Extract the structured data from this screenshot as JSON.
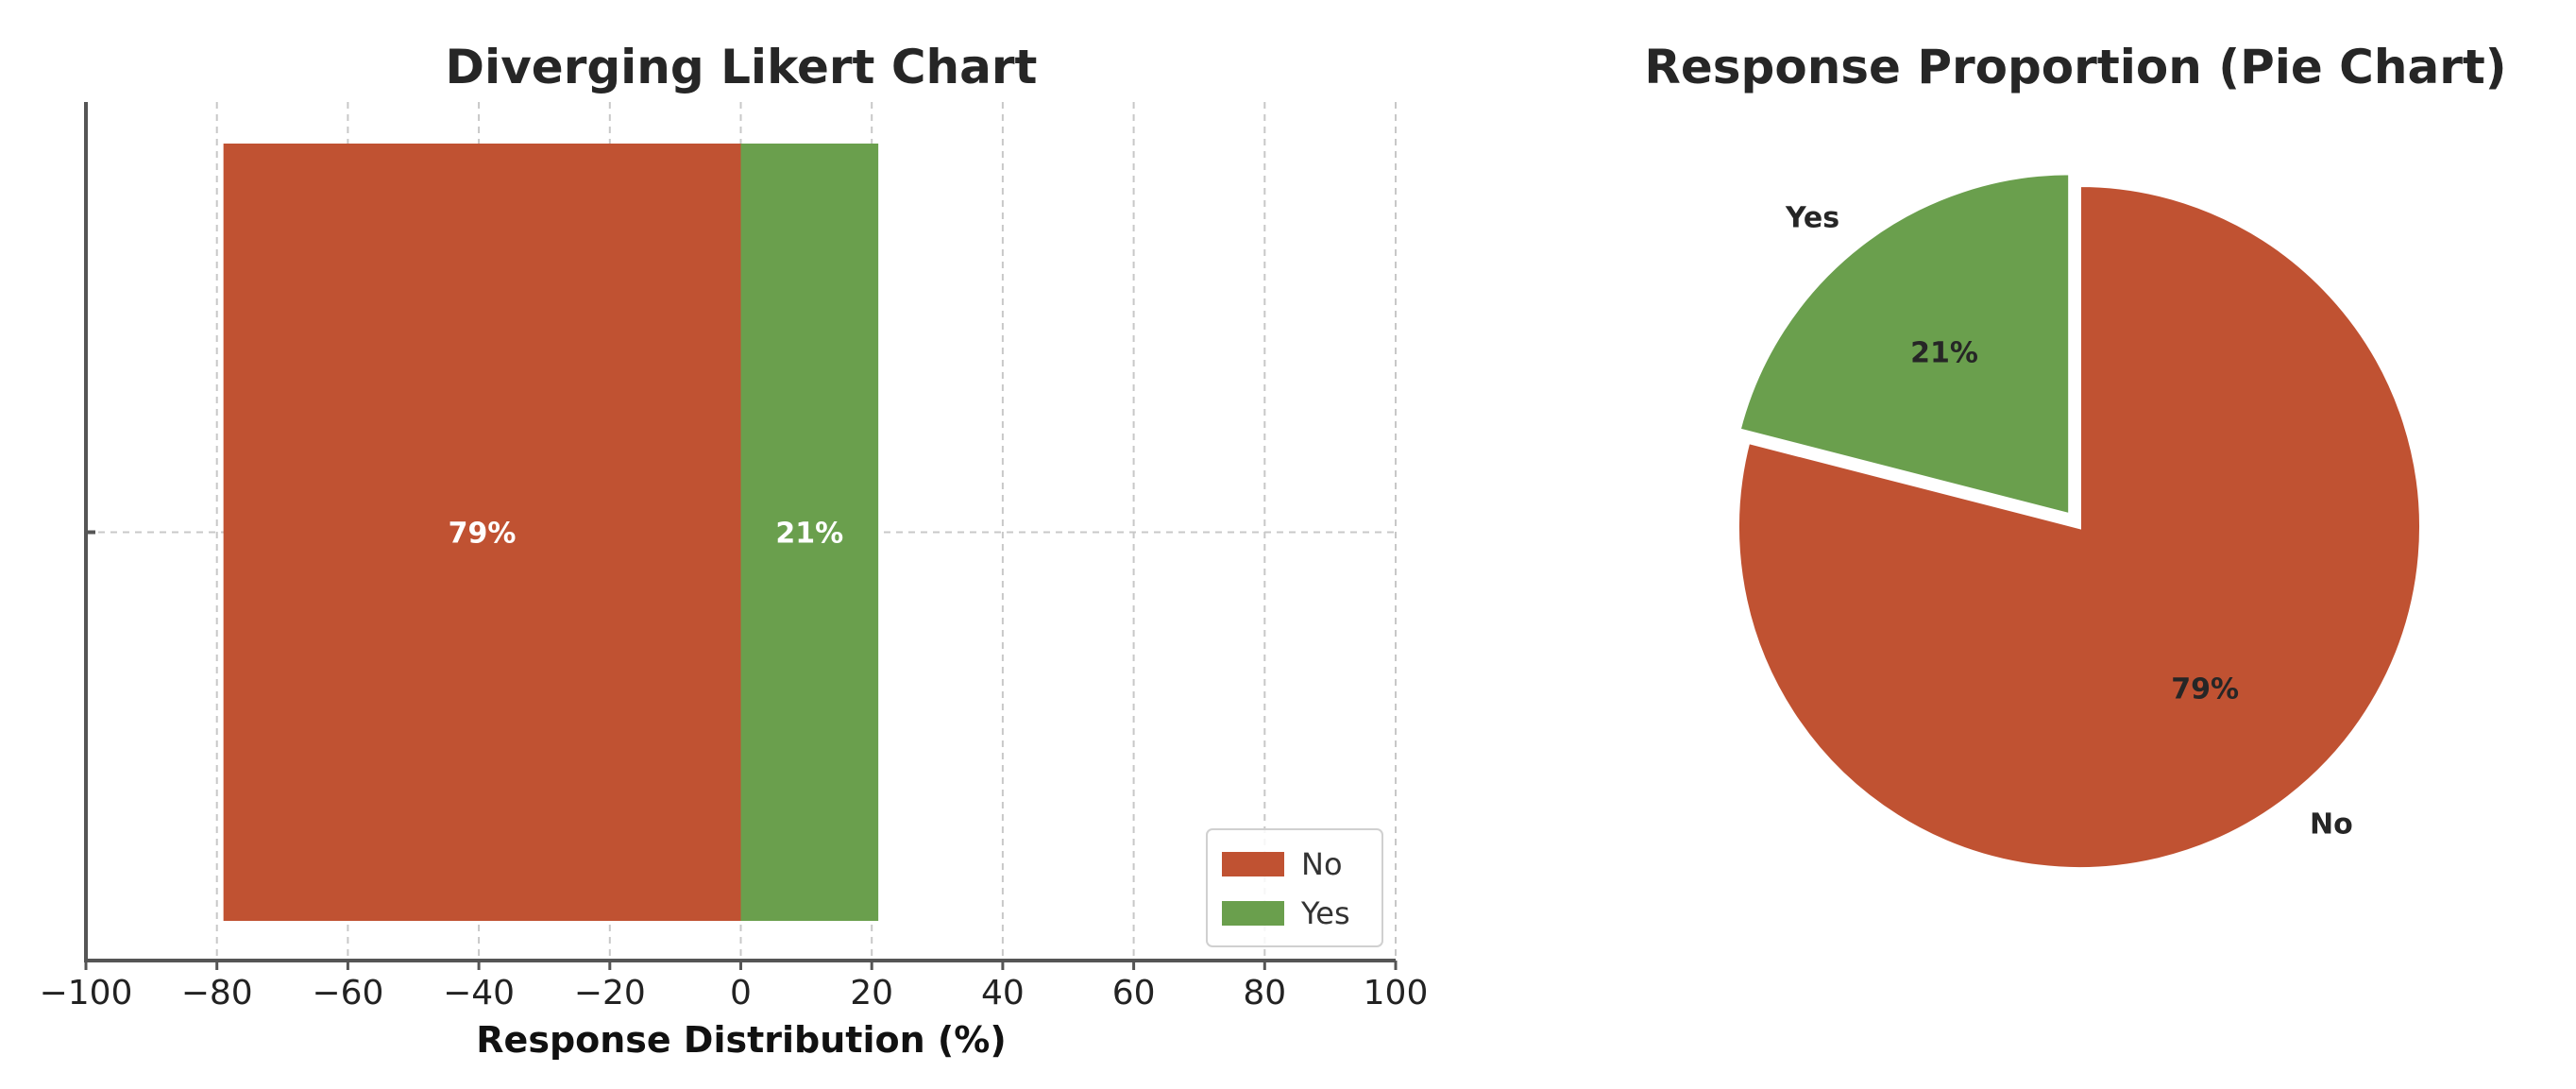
{
  "chart_data": [
    {
      "type": "bar",
      "orientation": "horizontal",
      "stacked": true,
      "title": "Diverging Likert Chart",
      "xlabel": "Response Distribution (%)",
      "ylabel": "",
      "xlim": [
        -100,
        100
      ],
      "xticks": [
        -100,
        -80,
        -60,
        -40,
        -20,
        0,
        20,
        40,
        60,
        80,
        100
      ],
      "xtick_labels": [
        "−100",
        "−80",
        "−60",
        "−40",
        "−20",
        "0",
        "20",
        "40",
        "60",
        "80",
        "100"
      ],
      "grid": true,
      "legend_position": "lower-right",
      "series": [
        {
          "name": "No",
          "start": -79,
          "end": 0,
          "label": "79%",
          "color": "#c05232"
        },
        {
          "name": "Yes",
          "start": 0,
          "end": 21,
          "label": "21%",
          "color": "#6a9f4d"
        }
      ]
    },
    {
      "type": "pie",
      "title": "Response Proportion (Pie Chart)",
      "start_angle": 90,
      "direction": "clockwise",
      "slices": [
        {
          "name": "No",
          "value": 79,
          "label": "79%",
          "color": "#c05232",
          "explode": false
        },
        {
          "name": "Yes",
          "value": 21,
          "label": "21%",
          "color": "#6a9f4d",
          "explode": true
        }
      ]
    }
  ]
}
